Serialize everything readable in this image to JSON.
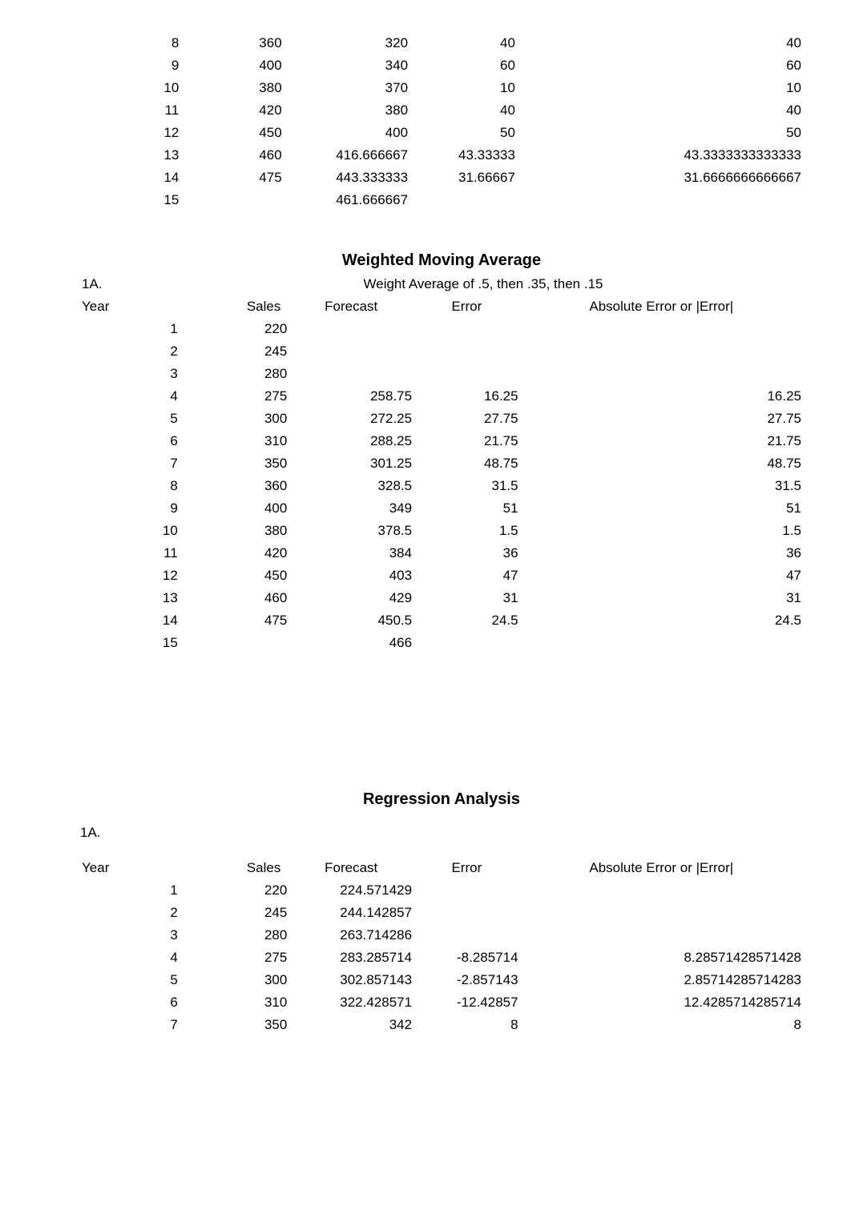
{
  "top_table": {
    "columns": [
      "",
      "",
      "",
      "",
      ""
    ],
    "rows": [
      [
        "8",
        "360",
        "320",
        "40",
        "40"
      ],
      [
        "9",
        "400",
        "340",
        "60",
        "60"
      ],
      [
        "10",
        "380",
        "370",
        "10",
        "10"
      ],
      [
        "11",
        "420",
        "380",
        "40",
        "40"
      ],
      [
        "12",
        "450",
        "400",
        "50",
        "50"
      ],
      [
        "13",
        "460",
        "416.666667",
        "43.33333",
        "43.3333333333333"
      ],
      [
        "14",
        "475",
        "443.333333",
        "31.66667",
        "31.6666666666667"
      ],
      [
        "15",
        "",
        "461.666667",
        "",
        ""
      ]
    ]
  },
  "wma": {
    "title": "Weighted Moving Average",
    "label": "1A.",
    "subtitle": "Weight Average of .5, then .35, then .15",
    "headers": [
      "Year",
      "Sales",
      "Forecast",
      "Error",
      "Absolute Error or |Error|"
    ],
    "rows": [
      [
        "1",
        "220",
        "",
        "",
        ""
      ],
      [
        "2",
        "245",
        "",
        "",
        ""
      ],
      [
        "3",
        "280",
        "",
        "",
        ""
      ],
      [
        "4",
        "275",
        "258.75",
        "16.25",
        "16.25"
      ],
      [
        "5",
        "300",
        "272.25",
        "27.75",
        "27.75"
      ],
      [
        "6",
        "310",
        "288.25",
        "21.75",
        "21.75"
      ],
      [
        "7",
        "350",
        "301.25",
        "48.75",
        "48.75"
      ],
      [
        "8",
        "360",
        "328.5",
        "31.5",
        "31.5"
      ],
      [
        "9",
        "400",
        "349",
        "51",
        "51"
      ],
      [
        "10",
        "380",
        "378.5",
        "1.5",
        "1.5"
      ],
      [
        "11",
        "420",
        "384",
        "36",
        "36"
      ],
      [
        "12",
        "450",
        "403",
        "47",
        "47"
      ],
      [
        "13",
        "460",
        "429",
        "31",
        "31"
      ],
      [
        "14",
        "475",
        "450.5",
        "24.5",
        "24.5"
      ],
      [
        "15",
        "",
        "466",
        "",
        ""
      ]
    ]
  },
  "regression": {
    "title": "Regression Analysis",
    "label": "1A.",
    "headers": [
      "Year",
      "Sales",
      "Forecast",
      "Error",
      "Absolute Error or |Error|"
    ],
    "rows": [
      [
        "1",
        "220",
        "224.571429",
        "",
        ""
      ],
      [
        "2",
        "245",
        "244.142857",
        "",
        ""
      ],
      [
        "3",
        "280",
        "263.714286",
        "",
        ""
      ],
      [
        "4",
        "275",
        "283.285714",
        "-8.285714",
        "8.28571428571428"
      ],
      [
        "5",
        "300",
        "302.857143",
        "-2.857143",
        "2.85714285714283"
      ],
      [
        "6",
        "310",
        "322.428571",
        "-12.42857",
        "12.4285714285714"
      ],
      [
        "7",
        "350",
        "342",
        "8",
        "8"
      ]
    ]
  }
}
